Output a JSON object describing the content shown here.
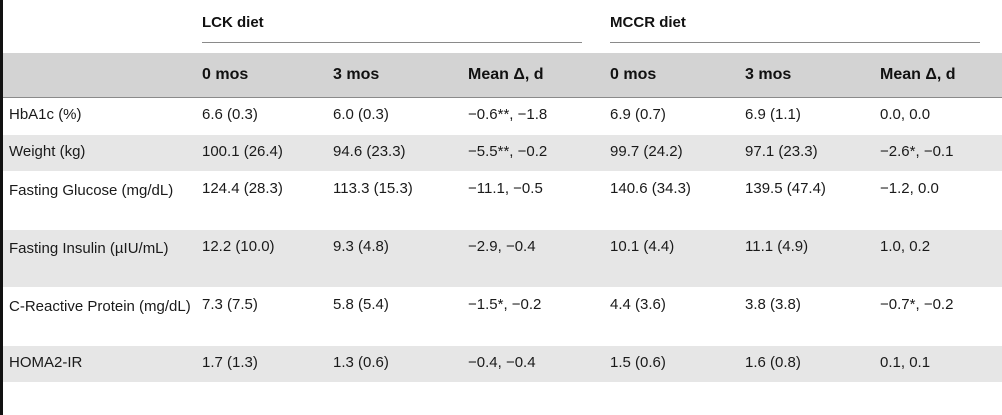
{
  "groups": {
    "lck": "LCK diet",
    "mccr": "MCCR diet"
  },
  "subheaders": [
    "0 mos",
    "3 mos",
    "Mean Δ, d",
    "0 mos",
    "3 mos",
    "Mean Δ, d"
  ],
  "rows": [
    {
      "label": "HbA1c (%)",
      "cells": [
        "6.6 (0.3)",
        "6.0 (0.3)",
        "−0.6**, −1.8",
        "6.9 (0.7)",
        "6.9 (1.1)",
        "0.0, 0.0"
      ]
    },
    {
      "label": "Weight (kg)",
      "cells": [
        "100.1 (26.4)",
        "94.6 (23.3)",
        "−5.5**, −0.2",
        "99.7 (24.2)",
        "97.1 (23.3)",
        "−2.6*, −0.1"
      ]
    },
    {
      "label": "Fasting Glucose (mg/dL)",
      "cells": [
        "124.4 (28.3)",
        "113.3 (15.3)",
        "−11.1, −0.5",
        "140.6 (34.3)",
        "139.5 (47.4)",
        "−1.2, 0.0"
      ]
    },
    {
      "label": "Fasting Insulin (µIU/mL)",
      "cells": [
        "12.2 (10.0)",
        "9.3 (4.8)",
        "−2.9, −0.4",
        "10.1 (4.4)",
        "11.1 (4.9)",
        "1.0, 0.2"
      ]
    },
    {
      "label": "C-Reactive Protein (mg/dL)",
      "cells": [
        "7.3 (7.5)",
        "5.8 (5.4)",
        "−1.5*, −0.2",
        "4.4 (3.6)",
        "3.8 (3.8)",
        "−0.7*, −0.2"
      ]
    },
    {
      "label": "HOMA2-IR",
      "cells": [
        "1.7 (1.3)",
        "1.3 (0.6)",
        "−0.4, −0.4",
        "1.5 (0.6)",
        "1.6 (0.8)",
        "0.1, 0.1"
      ]
    }
  ]
}
